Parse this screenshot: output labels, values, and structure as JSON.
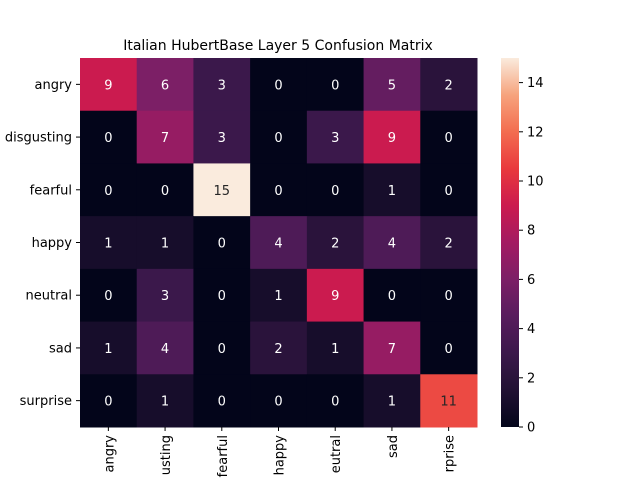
{
  "chart_data": {
    "type": "heatmap",
    "title": "Italian HubertBase Layer 5 Confusion Matrix",
    "xlabel": "",
    "ylabel": "",
    "row_labels": [
      "angry",
      "disgusting",
      "fearful",
      "happy",
      "neutral",
      "sad",
      "surprise"
    ],
    "col_tick_labels": [
      "angry",
      "usting",
      "fearful",
      "happy",
      "eutral",
      "sad",
      "rprise"
    ],
    "values": [
      [
        9,
        6,
        3,
        0,
        0,
        5,
        2
      ],
      [
        0,
        7,
        3,
        0,
        3,
        9,
        0
      ],
      [
        0,
        0,
        15,
        0,
        0,
        1,
        0
      ],
      [
        1,
        1,
        0,
        4,
        2,
        4,
        2
      ],
      [
        0,
        3,
        0,
        1,
        9,
        0,
        0
      ],
      [
        1,
        4,
        0,
        2,
        1,
        7,
        0
      ],
      [
        0,
        1,
        0,
        0,
        0,
        1,
        11
      ]
    ],
    "color_range": [
      0,
      15
    ],
    "colorbar_ticks": [
      "0",
      "2",
      "4",
      "6",
      "8",
      "10",
      "12",
      "14"
    ],
    "colormap": "rocket",
    "grid": false
  }
}
